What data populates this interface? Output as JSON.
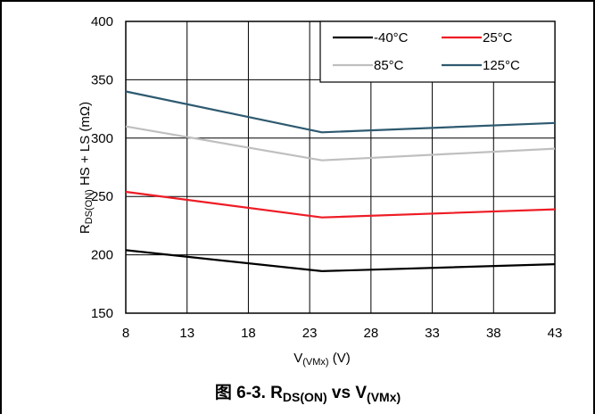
{
  "chart_data": {
    "type": "line",
    "title": "图 6-3. RDS(ON) vs V(VMx)",
    "caption": {
      "prefix": "图 6-3. R",
      "sub1": "DS(ON)",
      "mid": " vs V",
      "sub2": "(VMx)"
    },
    "xlabel": {
      "main": "V",
      "sub": "(VMx)",
      "unit": " (V)"
    },
    "ylabel": {
      "main": "R",
      "sub": "DS(ON)",
      "rest": " HS + LS (mΩ)"
    },
    "xlim": [
      8,
      43
    ],
    "ylim": [
      150,
      400
    ],
    "xticks": [
      8,
      13,
      18,
      23,
      28,
      33,
      38,
      43
    ],
    "yticks": [
      150,
      200,
      250,
      300,
      350,
      400
    ],
    "grid": true,
    "legend_placement": "top-right",
    "series": [
      {
        "name": "-40°C",
        "color": "#000000",
        "x": [
          8,
          24,
          43
        ],
        "y": [
          204,
          186,
          192
        ]
      },
      {
        "name": "25°C",
        "color": "#ee1c25",
        "x": [
          8,
          24,
          43
        ],
        "y": [
          254,
          232,
          239
        ]
      },
      {
        "name": "85°C",
        "color": "#bfbfbf",
        "x": [
          8,
          24,
          43
        ],
        "y": [
          310,
          281,
          291
        ]
      },
      {
        "name": "125°C",
        "color": "#2e5a70",
        "x": [
          8,
          24,
          43
        ],
        "y": [
          340,
          305,
          313
        ]
      }
    ]
  }
}
